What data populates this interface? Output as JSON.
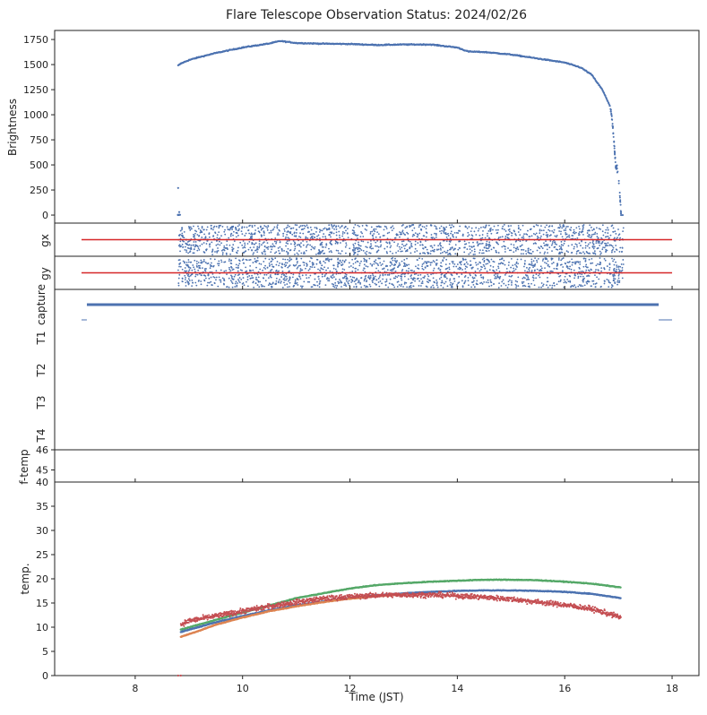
{
  "figure": {
    "title": "Flare Telescope Observation Status: 2024/02/26",
    "xlabel": "Time (JST)"
  },
  "colors": {
    "blue": "#4c72b0",
    "red": "#d62728",
    "green": "#55a868",
    "orange": "#dd8452",
    "dark_red": "#c44e52",
    "axis": "#222222"
  },
  "chart_data": [
    {
      "type": "scatter",
      "panel": "brightness",
      "ylabel": "Brightness",
      "xlim": [
        6.5,
        18.5
      ],
      "ylim": [
        -80,
        1840
      ],
      "yticks": [
        0,
        250,
        500,
        750,
        1000,
        1250,
        1500,
        1750
      ],
      "series": [
        {
          "color": "blue",
          "x": [
            8.8,
            8.85,
            9.0,
            9.2,
            9.5,
            10.0,
            10.5,
            10.7,
            11.0,
            11.5,
            12.0,
            12.5,
            13.0,
            13.5,
            14.0,
            14.2,
            14.5,
            15.0,
            15.5,
            16.0,
            16.3,
            16.5,
            16.7,
            16.85,
            16.9,
            16.95,
            17.0,
            17.05
          ],
          "y": [
            1490,
            1510,
            1545,
            1575,
            1615,
            1670,
            1710,
            1735,
            1715,
            1708,
            1705,
            1695,
            1700,
            1700,
            1670,
            1630,
            1625,
            1600,
            1560,
            1520,
            1470,
            1400,
            1250,
            1080,
            850,
            500,
            400,
            10
          ],
          "extra": [
            [
              8.8,
              0
            ],
            [
              8.8,
              270
            ],
            [
              8.82,
              30
            ],
            [
              17.05,
              0
            ],
            [
              17.08,
              0
            ]
          ]
        }
      ]
    },
    {
      "type": "scatter",
      "panel": "gx",
      "ylabel": "gx",
      "xlim": [
        6.5,
        18.5
      ],
      "ylim": [
        -1,
        1
      ],
      "reference_line": {
        "y": 0,
        "x": [
          7.0,
          18.0
        ],
        "color": "red"
      },
      "scatter_range_x": [
        8.8,
        17.1
      ],
      "scatter_spread": 0.9
    },
    {
      "type": "scatter",
      "panel": "gy",
      "ylabel": "gy",
      "xlim": [
        6.5,
        18.5
      ],
      "ylim": [
        -1,
        1
      ],
      "reference_line": {
        "y": 0,
        "x": [
          7.0,
          18.0
        ],
        "color": "red"
      },
      "scatter_range_x": [
        8.8,
        17.1
      ],
      "scatter_spread": 0.9
    },
    {
      "type": "line",
      "panel": "status",
      "ylim": [
        0,
        5
      ],
      "yticklabels": [
        "capture",
        "T1",
        "T2",
        "T3",
        "T4"
      ],
      "segments": [
        {
          "x": [
            7.1,
            17.75
          ],
          "level": "capture",
          "color": "blue",
          "thick": true
        },
        {
          "x": [
            7.0,
            7.1
          ],
          "level": "T1",
          "color": "blue",
          "thick": false
        },
        {
          "x": [
            17.75,
            18.0
          ],
          "level": "T1",
          "color": "blue",
          "thick": false
        }
      ]
    },
    {
      "type": "scatter",
      "panel": "ftemp",
      "ylabel": "f-temp",
      "ylim": [
        44.4,
        46.0
      ],
      "yticks": [
        45,
        46
      ]
    },
    {
      "type": "scatter",
      "panel": "temp",
      "ylabel": "temp.",
      "xlim": [
        6.5,
        18.5
      ],
      "ylim": [
        0,
        40
      ],
      "yticks": [
        0,
        5,
        10,
        15,
        20,
        25,
        30,
        35
      ],
      "xticks": [
        8,
        10,
        12,
        14,
        16,
        18
      ],
      "series": [
        {
          "color": "green",
          "x": [
            8.85,
            9.5,
            10.0,
            10.5,
            11.0,
            11.5,
            12.0,
            12.5,
            13.0,
            13.5,
            14.0,
            14.5,
            15.0,
            15.5,
            16.0,
            16.5,
            17.05
          ],
          "y": [
            9.5,
            11.5,
            13.0,
            14.5,
            16.0,
            17.0,
            18.0,
            18.7,
            19.1,
            19.4,
            19.6,
            19.8,
            19.8,
            19.7,
            19.4,
            19.0,
            18.2
          ]
        },
        {
          "color": "blue",
          "x": [
            8.85,
            9.5,
            10.0,
            10.5,
            11.0,
            11.5,
            12.0,
            12.5,
            13.0,
            13.5,
            14.0,
            14.5,
            15.0,
            15.5,
            16.0,
            16.5,
            17.05
          ],
          "y": [
            9.0,
            11.0,
            12.3,
            13.5,
            14.5,
            15.3,
            16.0,
            16.6,
            17.0,
            17.3,
            17.5,
            17.6,
            17.6,
            17.5,
            17.3,
            16.9,
            16.0
          ]
        },
        {
          "color": "orange",
          "x": [
            8.85,
            9.2,
            9.5,
            10.0,
            10.5,
            11.0,
            11.5,
            12.0,
            12.5,
            13.0
          ],
          "y": [
            8.0,
            9.3,
            10.5,
            12.0,
            13.3,
            14.3,
            15.2,
            15.9,
            16.4,
            16.8
          ]
        },
        {
          "color": "dark_red",
          "x": [
            8.85,
            9.0,
            9.5,
            10.0,
            10.5,
            11.0,
            11.5,
            12.0,
            12.5,
            13.0,
            13.5,
            14.0,
            14.5,
            15.0,
            15.5,
            16.0,
            16.5,
            17.05
          ],
          "y": [
            10.5,
            11.3,
            12.3,
            13.3,
            14.3,
            15.2,
            15.9,
            16.3,
            16.6,
            16.7,
            16.7,
            16.5,
            16.2,
            15.8,
            15.2,
            14.6,
            13.8,
            12.0
          ]
        }
      ],
      "extra": [
        [
          8.8,
          0.0
        ],
        [
          8.85,
          0.0
        ]
      ]
    }
  ]
}
